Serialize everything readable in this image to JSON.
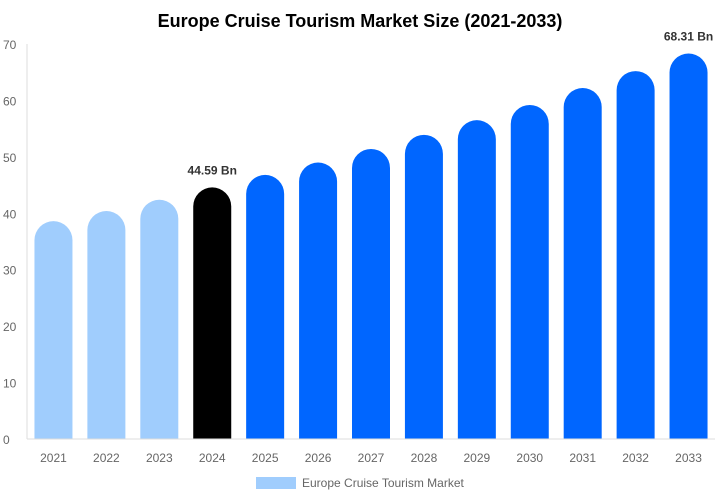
{
  "chart_data": {
    "type": "bar",
    "title": "Europe Cruise Tourism Market Size (2021-2033)",
    "xlabel": "",
    "ylabel": "",
    "ylim": [
      0,
      70
    ],
    "yticks": [
      0,
      10,
      20,
      30,
      40,
      50,
      60,
      70
    ],
    "grid": false,
    "legend_position": "bottom",
    "categories": [
      "2021",
      "2022",
      "2023",
      "2024",
      "2025",
      "2026",
      "2027",
      "2028",
      "2029",
      "2030",
      "2031",
      "2032",
      "2033"
    ],
    "series": [
      {
        "name": "Europe Cruise Tourism Market",
        "values": [
          38.6,
          40.4,
          42.4,
          44.59,
          46.8,
          49.0,
          51.4,
          53.9,
          56.5,
          59.2,
          62.2,
          65.2,
          68.31
        ]
      }
    ],
    "bar_colors": [
      "#a0cdfd",
      "#a0cdfd",
      "#a0cdfd",
      "#000000",
      "#0066ff",
      "#0066ff",
      "#0066ff",
      "#0066ff",
      "#0066ff",
      "#0066ff",
      "#0066ff",
      "#0066ff",
      "#0066ff"
    ],
    "legend_color": "#a0cdfd",
    "data_labels": [
      {
        "category": "2024",
        "text": "44.59 Bn"
      },
      {
        "category": "2033",
        "text": "68.31 Bn"
      }
    ]
  }
}
